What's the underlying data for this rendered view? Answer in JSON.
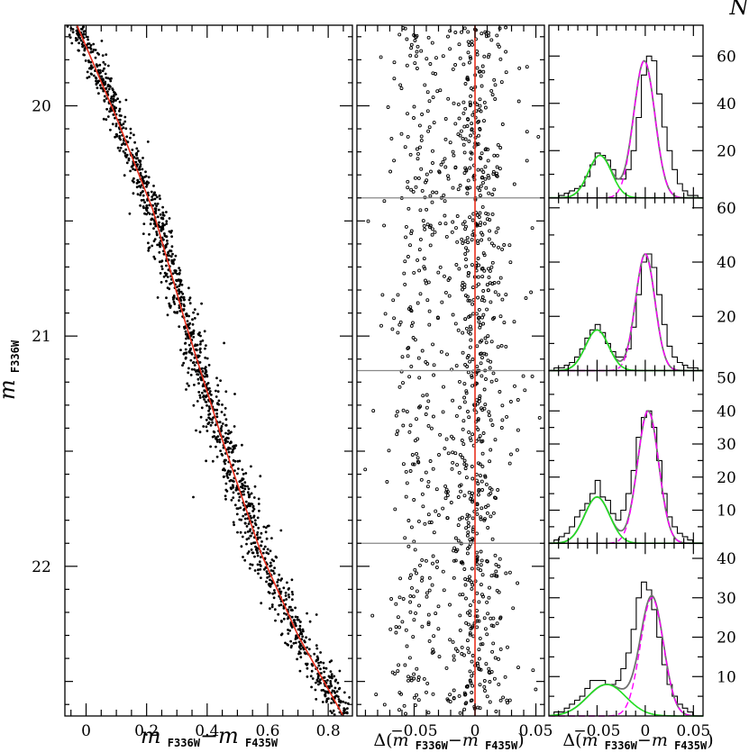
{
  "chart_data": [
    {
      "type": "scatter",
      "panel": "cmd",
      "xlim": [
        -0.07,
        0.88
      ],
      "ylim": [
        22.65,
        19.65
      ],
      "xticks": [
        0,
        0.2,
        0.4,
        0.6,
        0.8
      ],
      "xtick_labels": [
        "0",
        "0.2",
        "0.4",
        "0.6",
        "0.8"
      ],
      "yticks": [
        20,
        21,
        22
      ],
      "ytick_labels": [
        "20",
        "21",
        "22"
      ],
      "xlabel": {
        "main": "m",
        "sub1": "F336W",
        "dash": "−",
        "main2": "m",
        "sub2": "F435W"
      },
      "ylabel": {
        "main": "m",
        "sub": "F336W"
      },
      "fiducial_line": {
        "color": "#e8301e",
        "points": [
          [
            -0.03,
            19.65
          ],
          [
            0.1,
            20.05
          ],
          [
            0.22,
            20.45
          ],
          [
            0.33,
            20.95
          ],
          [
            0.45,
            21.45
          ],
          [
            0.58,
            21.95
          ],
          [
            0.7,
            22.3
          ],
          [
            0.85,
            22.65
          ]
        ]
      },
      "points_color": "#000000",
      "n_points": 1450
    },
    {
      "type": "scatter",
      "panel": "verticalized",
      "xlim": [
        -0.097,
        0.057
      ],
      "ylim": [
        22.65,
        19.65
      ],
      "xticks": [
        -0.05,
        0,
        0.05
      ],
      "xtick_labels": [
        "−0.05",
        "0",
        "0.05"
      ],
      "xlabel": {
        "prefix": "Δ(",
        "main": "m",
        "sub1": "F336W",
        "dash": "−",
        "main2": "m",
        "sub2": "F435W",
        "suffix": ")"
      },
      "zero_line_color": "#e8301e",
      "bin_boundaries": [
        20.4,
        21.15,
        21.9
      ],
      "n_points": 1100
    },
    {
      "type": "histogram",
      "panel": "histograms",
      "xlim": [
        -0.1,
        0.06
      ],
      "xticks": [
        -0.05,
        0,
        0.05
      ],
      "xtick_labels": [
        "−0.05",
        "0",
        "0.05"
      ],
      "xlabel": {
        "prefix": "Δ(",
        "main": "m",
        "sub1": "F336W",
        "dash": "−",
        "main2": "m",
        "sub2": "F435W",
        "suffix": ")"
      },
      "ylabel": "N",
      "colors": {
        "hist": "#000000",
        "fit_total": "#707070",
        "pop1": "#ff00ff",
        "pop2": "#22dd22"
      },
      "bins": [
        {
          "ylim": [
            0,
            70
          ],
          "yticks": [
            20,
            40,
            60
          ],
          "ytick_labels": [
            "20",
            "40",
            "60"
          ],
          "pop1": {
            "amp": 58,
            "mu": -0.001,
            "sigma": 0.011
          },
          "pop2": {
            "amp": 18,
            "mu": -0.047,
            "sigma": 0.012
          },
          "counts": [
            0,
            0,
            1,
            2,
            3,
            4,
            5,
            9,
            14,
            19,
            18,
            16,
            12,
            8,
            8,
            12,
            20,
            34,
            52,
            60,
            58,
            44,
            30,
            20,
            12,
            6,
            3,
            1,
            1,
            0
          ]
        },
        {
          "ylim": [
            0,
            61
          ],
          "yticks": [
            20,
            40,
            60
          ],
          "ytick_labels": [
            "20",
            "40",
            "60"
          ],
          "pop1": {
            "amp": 43,
            "mu": 0.0,
            "sigma": 0.01
          },
          "pop2": {
            "amp": 15,
            "mu": -0.05,
            "sigma": 0.012
          },
          "counts": [
            0,
            1,
            1,
            2,
            3,
            5,
            8,
            12,
            15,
            17,
            14,
            10,
            7,
            5,
            5,
            8,
            16,
            28,
            40,
            43,
            38,
            28,
            17,
            9,
            5,
            3,
            2,
            1,
            1,
            0
          ]
        },
        {
          "ylim": [
            0,
            50
          ],
          "yticks": [
            10,
            20,
            30,
            40,
            50
          ],
          "ytick_labels": [
            "10",
            "20",
            "30",
            "40",
            "50"
          ],
          "pop1": {
            "amp": 40,
            "mu": 0.003,
            "sigma": 0.011
          },
          "pop2": {
            "amp": 14,
            "mu": -0.05,
            "sigma": 0.013
          },
          "counts": [
            0,
            1,
            2,
            3,
            5,
            8,
            10,
            12,
            15,
            19,
            14,
            13,
            9,
            7,
            10,
            15,
            22,
            32,
            38,
            40,
            35,
            25,
            15,
            8,
            5,
            3,
            2,
            1,
            0,
            0
          ]
        },
        {
          "ylim": [
            0,
            42
          ],
          "yticks": [
            10,
            20,
            30,
            40
          ],
          "ytick_labels": [
            "10",
            "20",
            "30",
            "40"
          ],
          "pop1": {
            "amp": 30,
            "mu": 0.007,
            "sigma": 0.012
          },
          "pop2": {
            "amp": 8,
            "mu": -0.04,
            "sigma": 0.02
          },
          "counts": [
            0,
            1,
            1,
            2,
            3,
            4,
            5,
            7,
            9,
            9,
            9,
            8,
            8,
            9,
            12,
            16,
            22,
            30,
            34,
            32,
            27,
            20,
            13,
            8,
            5,
            3,
            2,
            1,
            0,
            0
          ]
        }
      ]
    }
  ]
}
